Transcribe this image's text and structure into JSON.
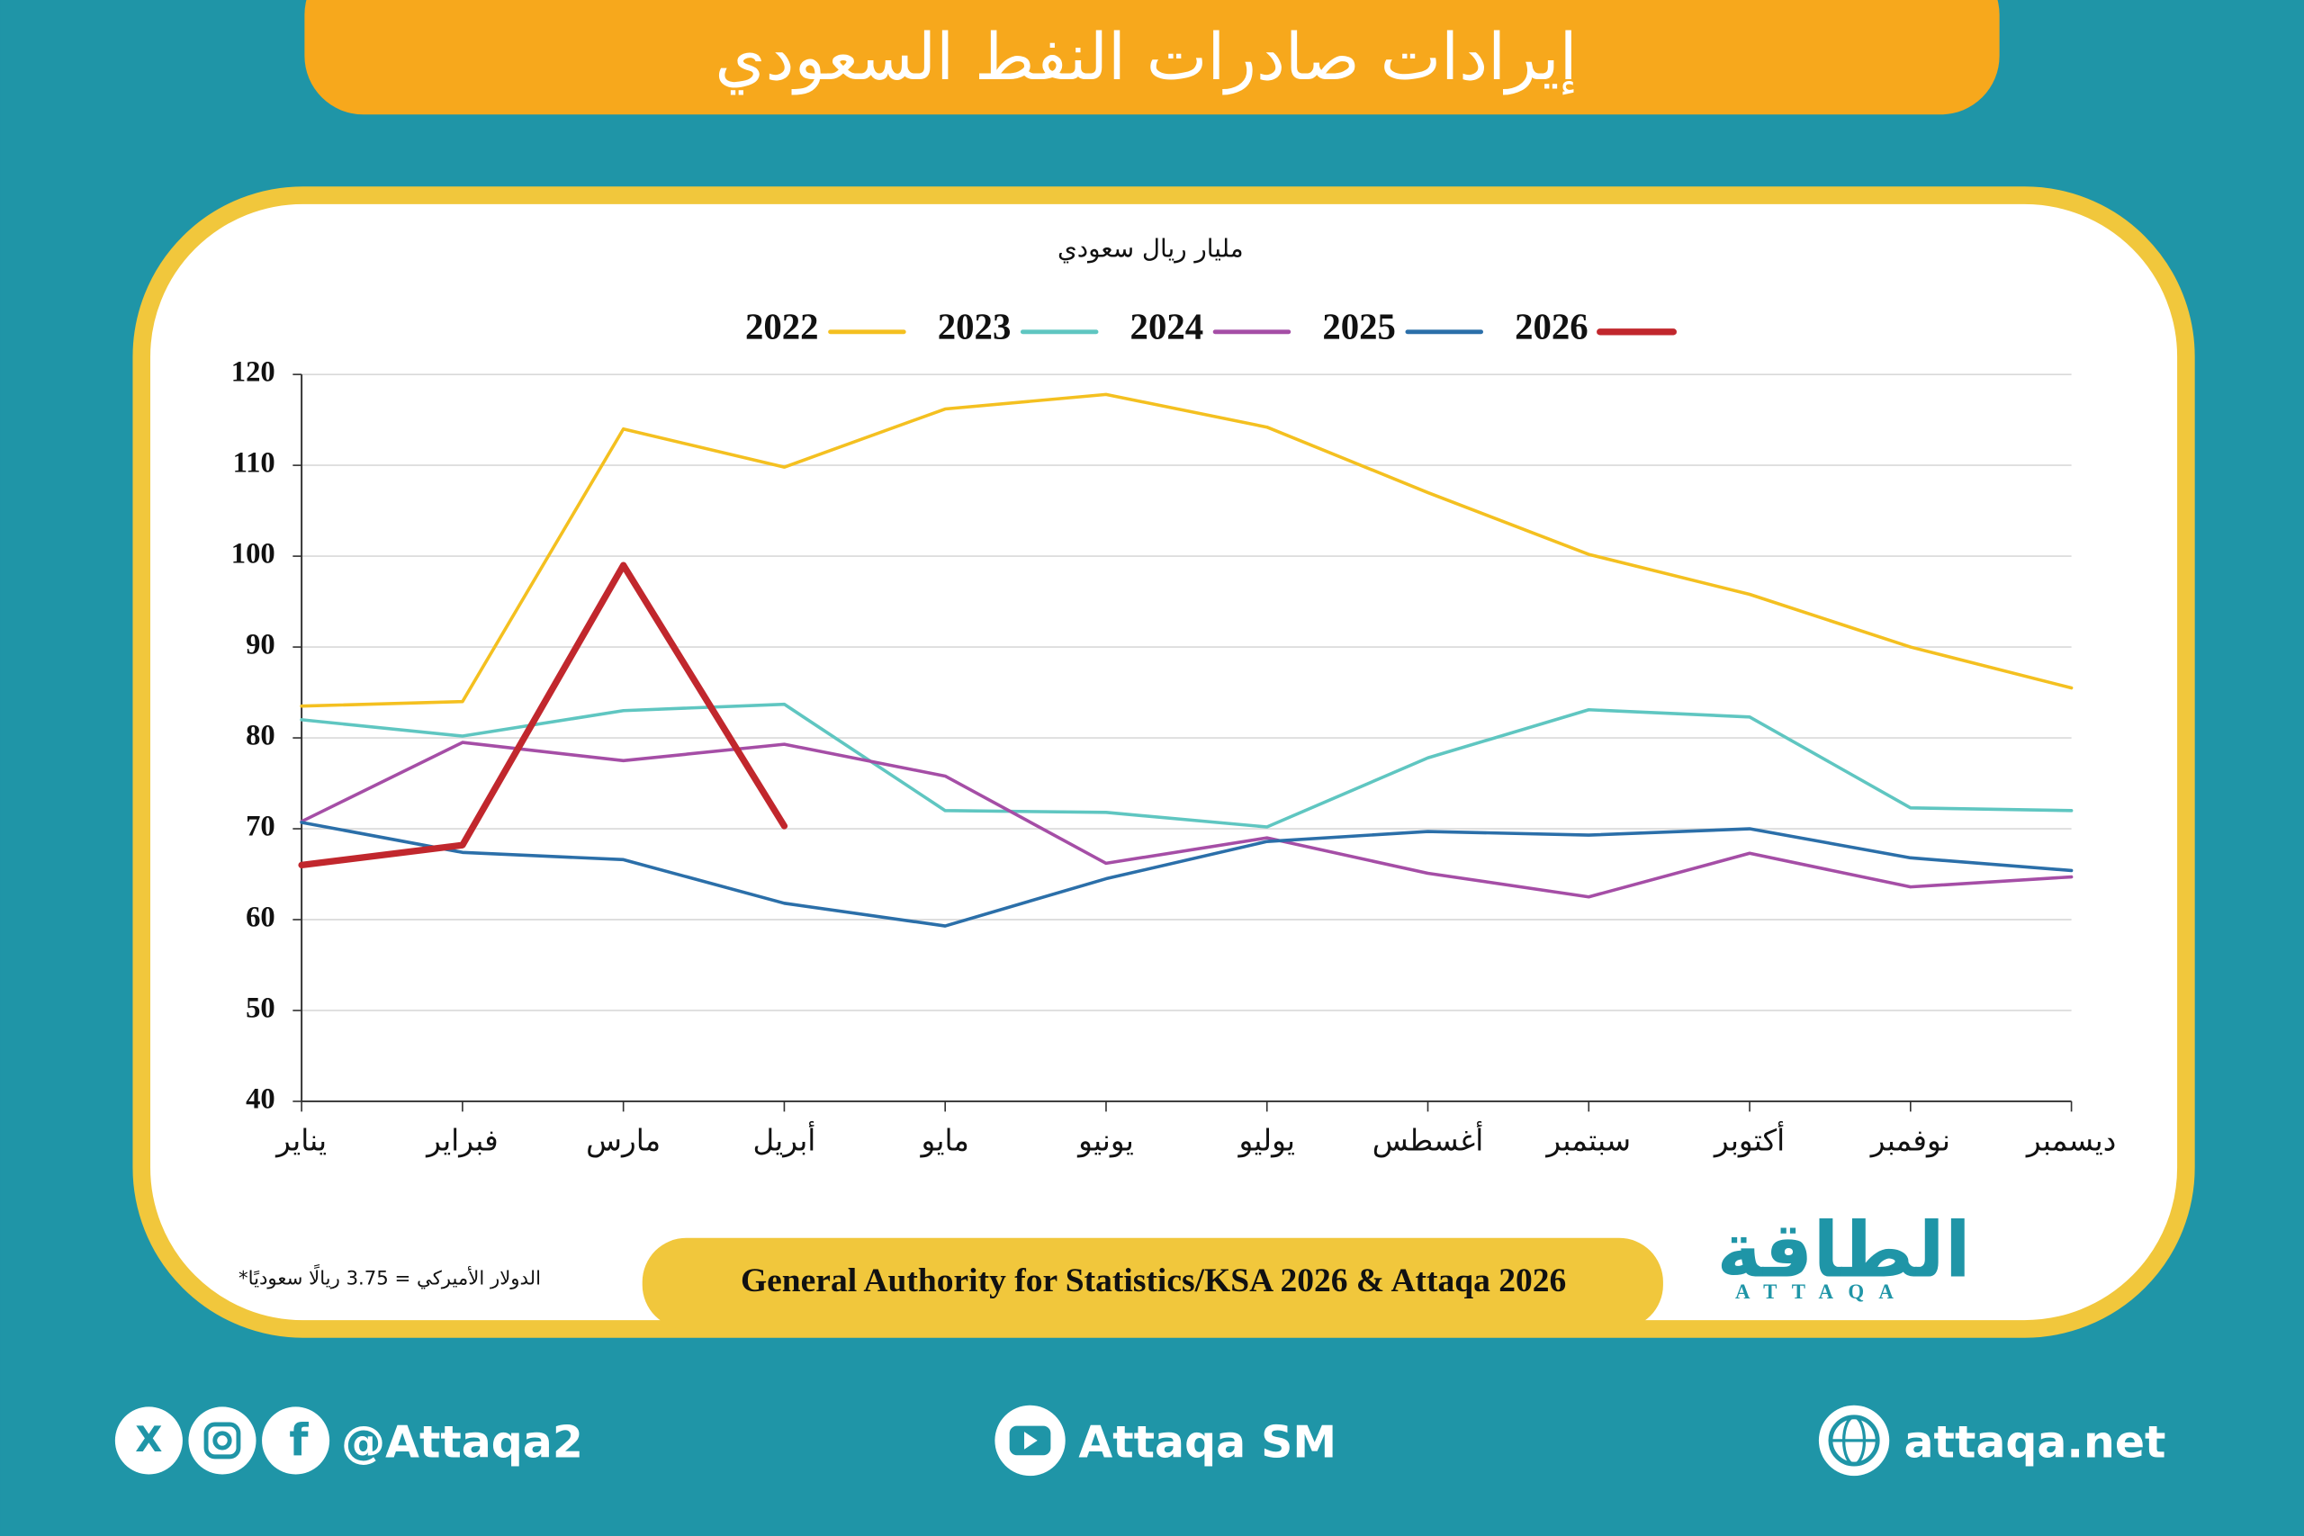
{
  "header": {
    "title": "إيرادات صادرات النفط السعودي"
  },
  "chart_data": {
    "type": "line",
    "y_label": "مليار ريال سعودي",
    "categories": [
      "يناير",
      "فبراير",
      "مارس",
      "أبريل",
      "مايو",
      "يونيو",
      "يوليو",
      "أغسطس",
      "سبتمبر",
      "أكتوبر",
      "نوفمبر",
      "ديسمبر"
    ],
    "series": [
      {
        "name": "2022",
        "color": "#f4c020",
        "values": [
          83.5,
          84,
          114,
          109.8,
          116.2,
          117.8,
          114.2,
          107,
          100.2,
          95.8,
          90,
          85.5
        ]
      },
      {
        "name": "2023",
        "color": "#5fc6c1",
        "values": [
          82,
          80.2,
          83,
          83.7,
          72,
          71.8,
          70.2,
          77.8,
          83.1,
          82.3,
          72.3,
          72
        ]
      },
      {
        "name": "2024",
        "color": "#a54ea6",
        "values": [
          70.8,
          79.5,
          77.5,
          79.3,
          75.8,
          66.2,
          69,
          65.1,
          62.5,
          67.3,
          63.6,
          64.7
        ]
      },
      {
        "name": "2025",
        "color": "#2b6fa9",
        "values": [
          70.7,
          67.4,
          66.6,
          61.8,
          59.3,
          64.5,
          68.6,
          69.7,
          69.3,
          70,
          66.8,
          65.4
        ]
      },
      {
        "name": "2026",
        "color": "#c1272d",
        "values": [
          66,
          68.2,
          99,
          70.3,
          null,
          null,
          null,
          null,
          null,
          null,
          null,
          null
        ]
      }
    ],
    "ylim": [
      40,
      120
    ],
    "yticks": [
      40,
      50,
      60,
      70,
      80,
      90,
      100,
      110,
      120
    ],
    "grid": true,
    "note": "*الدولار الأميركي = 3.75 ريالًا سعوديًا",
    "source": "General Authority for Statistics/KSA 2026 & Attaqa 2026"
  },
  "logo": {
    "name": "الطاقة",
    "latin": "ATTAQA"
  },
  "footer": {
    "social": "@Attaqa2",
    "youtube": "Attaqa SM",
    "website": "attaqa.net"
  }
}
